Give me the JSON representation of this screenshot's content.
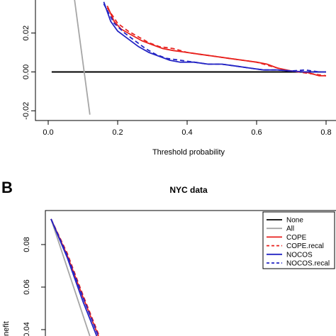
{
  "chart_data": [
    {
      "type": "line",
      "panel": "A",
      "title": "",
      "xlabel": "Threshold probability",
      "ylabel": "",
      "xlim": [
        0,
        0.8
      ],
      "ylim": [
        -0.025,
        0.037
      ],
      "x_ticks": [
        "0.0",
        "0.2",
        "0.4",
        "0.6",
        "0.8"
      ],
      "y_ticks": [
        "-0.02",
        "0.00",
        "0.02"
      ],
      "grid": false,
      "series": [
        {
          "name": "None",
          "color": "#000000",
          "dash": "solid",
          "x": [
            0.01,
            0.8
          ],
          "y": [
            0,
            0
          ]
        },
        {
          "name": "All",
          "color": "#a6a6a6",
          "dash": "solid",
          "x": [
            0.07,
            0.12
          ],
          "y": [
            0.045,
            -0.022
          ]
        },
        {
          "name": "COPE",
          "color": "#e8211d",
          "dash": "solid",
          "x": [
            0.17,
            0.19,
            0.21,
            0.24,
            0.27,
            0.3,
            0.33,
            0.36,
            0.4,
            0.44,
            0.48,
            0.52,
            0.56,
            0.6,
            0.63,
            0.66,
            0.7,
            0.74,
            0.78,
            0.8
          ],
          "y": [
            0.034,
            0.026,
            0.022,
            0.019,
            0.016,
            0.014,
            0.012,
            0.011,
            0.01,
            0.009,
            0.008,
            0.007,
            0.006,
            0.005,
            0.004,
            0.002,
            0.0005,
            0.0,
            -0.002,
            -0.002
          ]
        },
        {
          "name": "COPE.recal",
          "color": "#e8211d",
          "dash": "dashed",
          "x": [
            0.17,
            0.2,
            0.23,
            0.26,
            0.29,
            0.32,
            0.36,
            0.4,
            0.44,
            0.48,
            0.52,
            0.56,
            0.6,
            0.64,
            0.68,
            0.72,
            0.76,
            0.8
          ],
          "y": [
            0.033,
            0.025,
            0.021,
            0.018,
            0.015,
            0.013,
            0.012,
            0.01,
            0.009,
            0.008,
            0.007,
            0.006,
            0.005,
            0.003,
            0.001,
            0.0,
            -0.001,
            -0.002
          ]
        },
        {
          "name": "NOCOS",
          "color": "#2324c4",
          "dash": "solid",
          "x": [
            0.16,
            0.18,
            0.2,
            0.23,
            0.26,
            0.29,
            0.32,
            0.35,
            0.38,
            0.42,
            0.46,
            0.5,
            0.54,
            0.58,
            0.62,
            0.66,
            0.7,
            0.74,
            0.78,
            0.8
          ],
          "y": [
            0.036,
            0.026,
            0.021,
            0.017,
            0.013,
            0.01,
            0.008,
            0.006,
            0.005,
            0.005,
            0.004,
            0.004,
            0.003,
            0.002,
            0.001,
            0.001,
            0.0005,
            0.0,
            0.0,
            0.0
          ]
        },
        {
          "name": "NOCOS.recal",
          "color": "#2324c4",
          "dash": "dashed",
          "x": [
            0.16,
            0.19,
            0.22,
            0.25,
            0.28,
            0.31,
            0.34,
            0.38,
            0.42,
            0.46,
            0.5,
            0.54,
            0.58,
            0.62,
            0.66,
            0.7,
            0.74,
            0.78,
            0.8
          ],
          "y": [
            0.035,
            0.025,
            0.02,
            0.016,
            0.012,
            0.009,
            0.007,
            0.006,
            0.005,
            0.004,
            0.004,
            0.003,
            0.002,
            0.001,
            0.001,
            0.0005,
            0.001,
            0.0,
            0.0
          ]
        }
      ]
    },
    {
      "type": "line",
      "panel": "B",
      "title": "NYC data",
      "xlabel": "",
      "ylabel": "Net benefit",
      "ylabel_visible": "nefit",
      "ylim": [
        0.037,
        0.096
      ],
      "y_ticks": [
        "0.04",
        "0.06",
        "0.08"
      ],
      "grid": false,
      "legend": {
        "position": "top-right",
        "entries": [
          "None",
          "All",
          "COPE",
          "COPE.recal",
          "NOCOS",
          "NOCOS.recal"
        ]
      },
      "series": [
        {
          "name": "None",
          "color": "#000000",
          "dash": "solid",
          "x": [],
          "y": []
        },
        {
          "name": "All",
          "color": "#a6a6a6",
          "dash": "solid",
          "x": [
            0.0,
            0.05
          ],
          "y": [
            0.092,
            0.035
          ]
        },
        {
          "name": "COPE",
          "color": "#e8211d",
          "dash": "solid",
          "x": [
            0.0,
            0.02,
            0.04,
            0.06
          ],
          "y": [
            0.092,
            0.075,
            0.055,
            0.036
          ]
        },
        {
          "name": "COPE.recal",
          "color": "#e8211d",
          "dash": "dashed",
          "x": [
            0.0,
            0.02,
            0.04,
            0.06
          ],
          "y": [
            0.092,
            0.076,
            0.056,
            0.037
          ]
        },
        {
          "name": "NOCOS",
          "color": "#2324c4",
          "dash": "solid",
          "x": [
            0.0,
            0.02,
            0.04,
            0.06
          ],
          "y": [
            0.092,
            0.074,
            0.053,
            0.034
          ]
        },
        {
          "name": "NOCOS.recal",
          "color": "#2324c4",
          "dash": "dashed",
          "x": [
            0.0,
            0.02,
            0.04,
            0.06
          ],
          "y": [
            0.092,
            0.075,
            0.055,
            0.036
          ]
        }
      ]
    }
  ],
  "labels": {
    "panel_a_letter": "",
    "panel_b_letter": "B"
  }
}
